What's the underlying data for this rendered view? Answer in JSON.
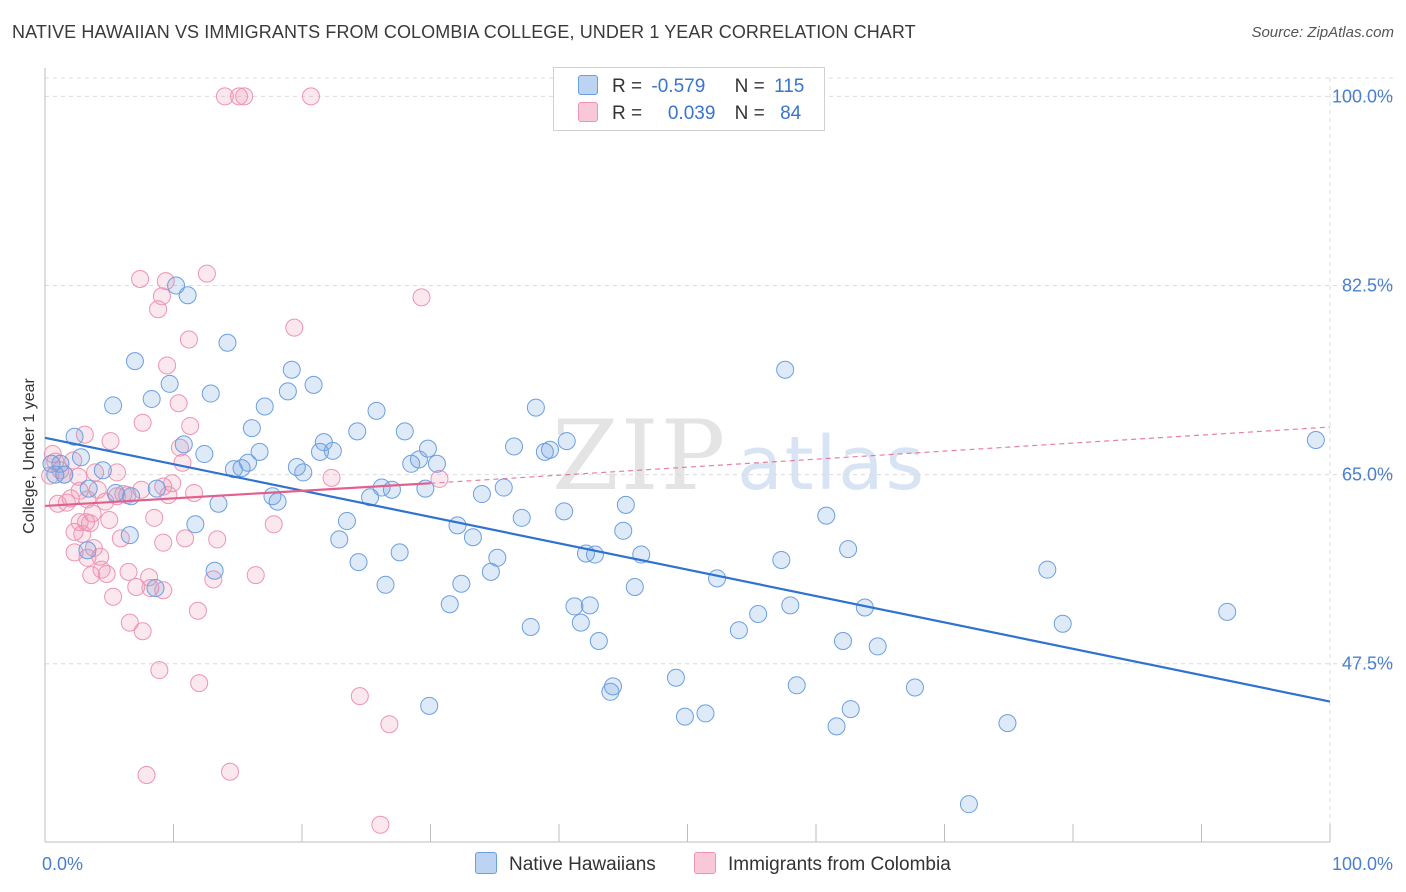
{
  "title": "NATIVE HAWAIIAN VS IMMIGRANTS FROM COLOMBIA COLLEGE, UNDER 1 YEAR CORRELATION CHART",
  "source": "Source: ZipAtlas.com",
  "watermark": {
    "zip": "ZIP",
    "atlas": "atlas"
  },
  "legend": {
    "rows": [
      {
        "r_label": "R =",
        "r_value": "-0.579",
        "n_label": "N =",
        "n_value": "115"
      },
      {
        "r_label": "R =",
        "r_value": "0.039",
        "n_label": "N =",
        "n_value": "84"
      }
    ]
  },
  "bottom_legend": {
    "series1": "Native Hawaiians",
    "series2": "Immigrants from Colombia"
  },
  "colors": {
    "blue": "#6c9fe0",
    "blue_line": "#2f72d0",
    "pink": "#ee94b2",
    "pink_line": "#e2608e",
    "axis_text": "#4a7fd0",
    "grid": "#dcdcdc"
  },
  "chart_data": {
    "type": "scatter",
    "title": "NATIVE HAWAIIAN VS IMMIGRANTS FROM COLOMBIA COLLEGE, UNDER 1 YEAR CORRELATION CHART",
    "xlabel": "",
    "ylabel": "College, Under 1 year",
    "xlim": [
      0,
      100
    ],
    "ylim": [
      31,
      101.7
    ],
    "x_tick_labels": [
      "0.0%",
      "100.0%"
    ],
    "y_ticks": [
      47.5,
      65.0,
      82.5,
      100.0
    ],
    "y_tick_labels": [
      "47.5%",
      "65.0%",
      "82.5%",
      "100.0%"
    ],
    "series": [
      {
        "name": "Native Hawaiians",
        "r": -0.579,
        "n": 115,
        "trend": {
          "x": [
            0,
            100
          ],
          "y": [
            68.4,
            44.0
          ]
        },
        "points": [
          [
            0.5,
            66
          ],
          [
            0.8,
            65
          ],
          [
            1.2,
            66
          ],
          [
            1.5,
            65
          ],
          [
            2.3,
            68.5
          ],
          [
            2.8,
            66.6
          ],
          [
            3.3,
            58
          ],
          [
            3.4,
            63.7
          ],
          [
            4.5,
            65.4
          ],
          [
            5.3,
            71.4
          ],
          [
            5.5,
            63.3
          ],
          [
            6.6,
            59.4
          ],
          [
            6.7,
            63
          ],
          [
            7.0,
            75.5
          ],
          [
            8.3,
            72
          ],
          [
            8.6,
            54.5
          ],
          [
            8.7,
            63.7
          ],
          [
            9.7,
            73.4
          ],
          [
            10.2,
            82.5
          ],
          [
            10.8,
            67.8
          ],
          [
            11.1,
            81.6
          ],
          [
            11.7,
            60.4
          ],
          [
            12.4,
            66.9
          ],
          [
            12.9,
            72.5
          ],
          [
            13.2,
            56.1
          ],
          [
            13.5,
            62.3
          ],
          [
            14.2,
            77.2
          ],
          [
            14.7,
            65.5
          ],
          [
            15.3,
            65.6
          ],
          [
            15.8,
            66.1
          ],
          [
            16.1,
            69.3
          ],
          [
            16.7,
            67.1
          ],
          [
            17.1,
            71.3
          ],
          [
            17.7,
            63
          ],
          [
            18.1,
            62.5
          ],
          [
            18.9,
            72.7
          ],
          [
            19.2,
            74.7
          ],
          [
            19.6,
            65.7
          ],
          [
            20.1,
            65.2
          ],
          [
            20.9,
            73.3
          ],
          [
            21.4,
            67.1
          ],
          [
            21.7,
            68
          ],
          [
            22.4,
            67.2
          ],
          [
            22.9,
            59
          ],
          [
            23.5,
            60.7
          ],
          [
            24.3,
            69
          ],
          [
            24.4,
            56.9
          ],
          [
            25.3,
            62.9
          ],
          [
            25.8,
            70.9
          ],
          [
            26.2,
            63.8
          ],
          [
            26.5,
            54.8
          ],
          [
            27.0,
            63.6
          ],
          [
            27.6,
            57.8
          ],
          [
            28,
            69
          ],
          [
            28.5,
            66
          ],
          [
            29.1,
            66.4
          ],
          [
            29.6,
            63.7
          ],
          [
            29.8,
            67.4
          ],
          [
            29.9,
            43.6
          ],
          [
            30.5,
            66
          ],
          [
            31.5,
            53
          ],
          [
            32.1,
            60.3
          ],
          [
            32.4,
            54.9
          ],
          [
            33.3,
            59.2
          ],
          [
            34,
            63.2
          ],
          [
            34.7,
            56
          ],
          [
            35.2,
            57.3
          ],
          [
            35.7,
            63.8
          ],
          [
            36.5,
            67.6
          ],
          [
            37.1,
            61
          ],
          [
            37.8,
            50.9
          ],
          [
            38.2,
            71.2
          ],
          [
            38.9,
            67.1
          ],
          [
            39.3,
            67.3
          ],
          [
            40.4,
            61.6
          ],
          [
            40.6,
            68.1
          ],
          [
            41.2,
            52.8
          ],
          [
            41.7,
            51.3
          ],
          [
            42.1,
            57.7
          ],
          [
            42.4,
            52.9
          ],
          [
            42.8,
            57.6
          ],
          [
            43.1,
            49.6
          ],
          [
            44.0,
            44.9
          ],
          [
            44.2,
            45.4
          ],
          [
            45.0,
            59.8
          ],
          [
            45.2,
            62.2
          ],
          [
            45.9,
            54.6
          ],
          [
            46.4,
            57.6
          ],
          [
            49.1,
            46.2
          ],
          [
            49.8,
            42.6
          ],
          [
            51.4,
            42.9
          ],
          [
            52.3,
            55.4
          ],
          [
            54.0,
            50.6
          ],
          [
            55.5,
            52.1
          ],
          [
            57.3,
            57.1
          ],
          [
            57.6,
            74.7
          ],
          [
            58.0,
            52.9
          ],
          [
            58.5,
            45.5
          ],
          [
            60.8,
            61.2
          ],
          [
            61.6,
            41.7
          ],
          [
            62.1,
            49.6
          ],
          [
            62.5,
            58.1
          ],
          [
            62.7,
            43.3
          ],
          [
            63.8,
            52.7
          ],
          [
            64.8,
            49.1
          ],
          [
            67.7,
            45.3
          ],
          [
            71.9,
            34.5
          ],
          [
            74.9,
            42
          ],
          [
            78,
            56.2
          ],
          [
            79.2,
            51.2
          ],
          [
            92,
            52.3
          ],
          [
            98.9,
            68.2
          ]
        ]
      },
      {
        "name": "Immigrants from Colombia",
        "r": 0.039,
        "n": 84,
        "trend": {
          "x": [
            0,
            30
          ],
          "y": [
            62.1,
            64.2
          ]
        },
        "trend_extension": {
          "x": [
            30,
            100
          ],
          "y": [
            64.2,
            69.4
          ]
        },
        "points": [
          [
            0.4,
            64.9
          ],
          [
            0.6,
            66.9
          ],
          [
            0.8,
            66.2
          ],
          [
            1.0,
            62.3
          ],
          [
            1.2,
            65.4
          ],
          [
            1.5,
            65.0
          ],
          [
            1.7,
            62.4
          ],
          [
            2.0,
            62.8
          ],
          [
            2.2,
            66.3
          ],
          [
            2.3,
            59.7
          ],
          [
            2.3,
            57.8
          ],
          [
            2.6,
            64.8
          ],
          [
            2.7,
            63.5
          ],
          [
            2.7,
            60.6
          ],
          [
            2.9,
            59.5
          ],
          [
            3.1,
            68.7
          ],
          [
            3.2,
            60.6
          ],
          [
            3.3,
            62.7
          ],
          [
            3.3,
            57.3
          ],
          [
            3.5,
            60.5
          ],
          [
            3.6,
            55.7
          ],
          [
            3.7,
            61.4
          ],
          [
            3.8,
            58.2
          ],
          [
            3.9,
            65.2
          ],
          [
            4.1,
            63.6
          ],
          [
            4.3,
            57.4
          ],
          [
            4.4,
            56.2
          ],
          [
            4.7,
            62.5
          ],
          [
            4.8,
            55.8
          ],
          [
            5.0,
            60.8
          ],
          [
            5.1,
            68.1
          ],
          [
            5.3,
            53.7
          ],
          [
            5.6,
            63.0
          ],
          [
            5.6,
            65.2
          ],
          [
            5.9,
            59.1
          ],
          [
            6.1,
            63.2
          ],
          [
            6.4,
            63.1
          ],
          [
            6.5,
            56.0
          ],
          [
            6.6,
            51.3
          ],
          [
            7.1,
            54.6
          ],
          [
            7.4,
            83.1
          ],
          [
            7.5,
            63.6
          ],
          [
            7.6,
            69.8
          ],
          [
            7.6,
            50.5
          ],
          [
            7.9,
            37.2
          ],
          [
            8.1,
            55.5
          ],
          [
            8.2,
            54.5
          ],
          [
            8.5,
            61.0
          ],
          [
            8.8,
            80.3
          ],
          [
            8.9,
            46.9
          ],
          [
            9.1,
            81.5
          ],
          [
            9.2,
            54.3
          ],
          [
            9.2,
            63.9
          ],
          [
            9.2,
            58.7
          ],
          [
            9.4,
            82.9
          ],
          [
            9.5,
            75.1
          ],
          [
            9.6,
            63.1
          ],
          [
            9.9,
            64.2
          ],
          [
            10.4,
            71.6
          ],
          [
            10.5,
            67.5
          ],
          [
            10.7,
            66.1
          ],
          [
            10.9,
            59.1
          ],
          [
            11.2,
            77.5
          ],
          [
            11.3,
            69.5
          ],
          [
            11.6,
            63.3
          ],
          [
            11.9,
            52.4
          ],
          [
            12.0,
            45.7
          ],
          [
            12.6,
            83.6
          ],
          [
            13.1,
            55.3
          ],
          [
            13.4,
            59.0
          ],
          [
            14.0,
            100.0
          ],
          [
            14.4,
            37.5
          ],
          [
            15.1,
            100.0
          ],
          [
            15.5,
            100.0
          ],
          [
            16.4,
            55.7
          ],
          [
            17.8,
            60.4
          ],
          [
            19.4,
            78.6
          ],
          [
            20.7,
            100.0
          ],
          [
            22.3,
            64.7
          ],
          [
            24.5,
            44.5
          ],
          [
            26.1,
            32.6
          ],
          [
            26.8,
            41.9
          ],
          [
            29.3,
            81.4
          ],
          [
            30.7,
            64.6
          ]
        ]
      }
    ]
  }
}
